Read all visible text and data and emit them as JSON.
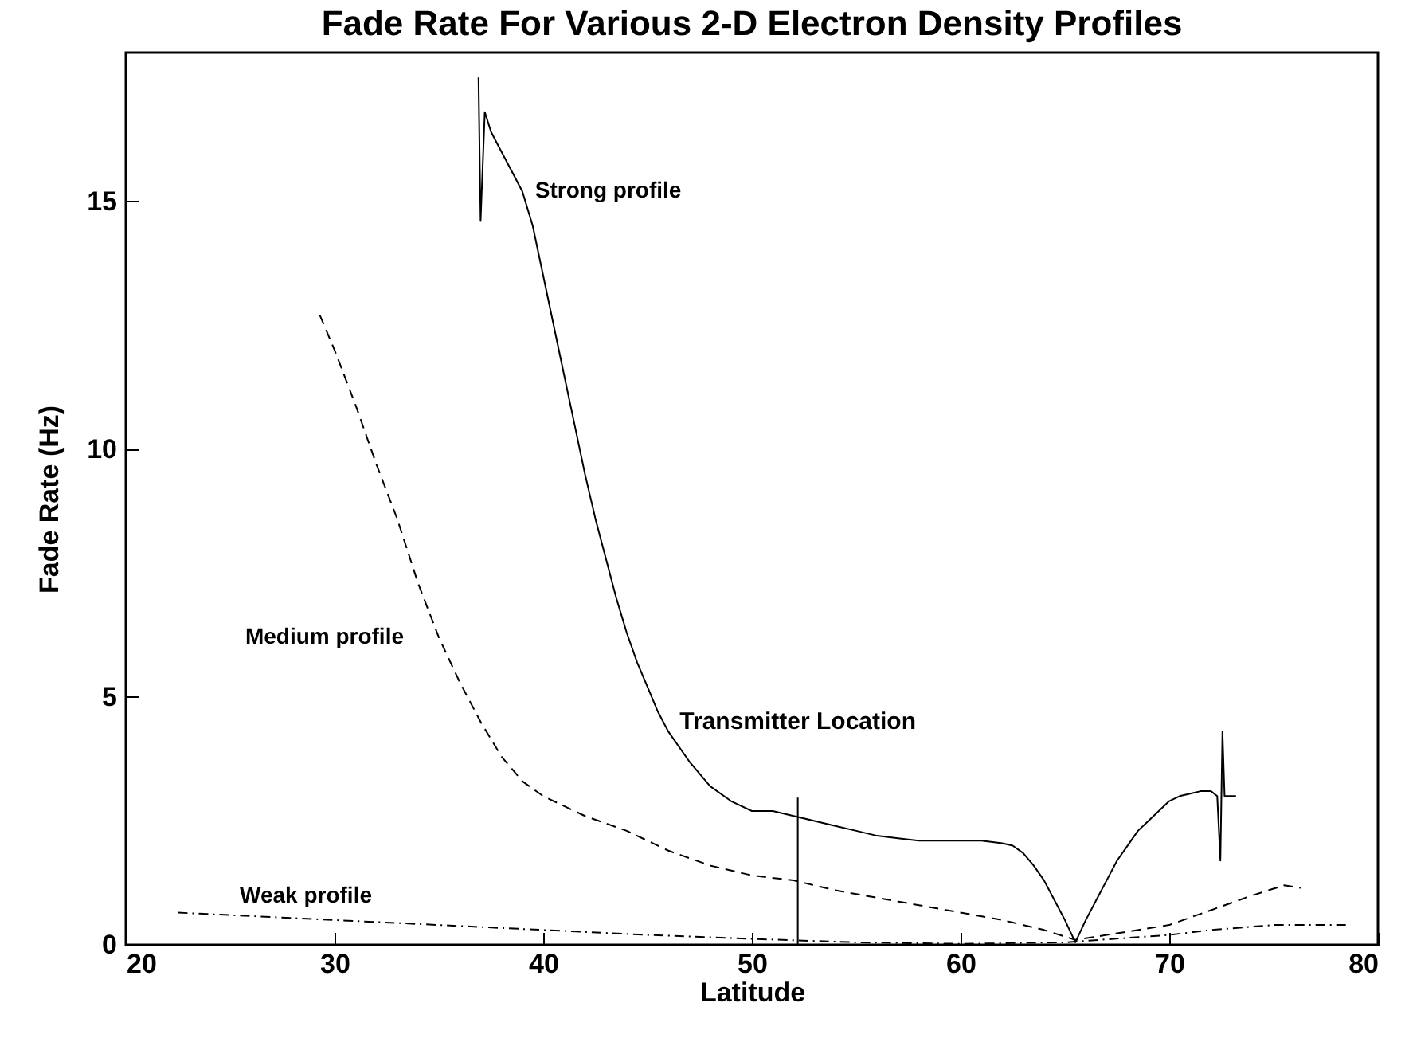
{
  "chart_data": {
    "type": "line",
    "title": "Fade Rate For Various 2-D Electron Density Profiles",
    "xlabel": "Latitude",
    "ylabel": "Fade Rate (Hz)",
    "xlim": [
      20,
      80
    ],
    "xticks": [
      20,
      30,
      40,
      50,
      60,
      70,
      80
    ],
    "ylim": [
      0,
      18
    ],
    "yticks": [
      0,
      5,
      10,
      15
    ],
    "series": [
      {
        "color": "#000000",
        "line_style": "solid",
        "x": [
          36.9,
          37.0,
          37.2,
          37.5,
          38,
          38.5,
          39,
          39.5,
          40,
          40.5,
          41,
          41.5,
          42,
          42.5,
          43,
          43.5,
          44,
          44.5,
          45,
          45.5,
          46,
          47,
          48,
          49,
          50,
          51,
          52,
          53,
          54,
          55,
          56,
          57,
          58,
          59,
          60,
          61,
          62,
          62.5,
          63,
          63.5,
          64,
          64.5,
          65,
          65.5,
          66,
          66.5,
          67,
          67.5,
          68,
          68.5,
          69,
          69.5,
          70,
          70.5,
          71,
          71.5,
          72,
          72.3,
          72.45,
          72.55,
          72.65,
          72.8,
          73.2
        ],
        "values": [
          17.5,
          14.6,
          16.8,
          16.4,
          16.0,
          15.6,
          15.2,
          14.5,
          13.5,
          12.5,
          11.5,
          10.5,
          9.5,
          8.6,
          7.8,
          7.0,
          6.3,
          5.7,
          5.2,
          4.7,
          4.3,
          3.7,
          3.2,
          2.9,
          2.7,
          2.7,
          2.6,
          2.5,
          2.4,
          2.3,
          2.2,
          2.15,
          2.1,
          2.1,
          2.1,
          2.1,
          2.05,
          2.0,
          1.85,
          1.6,
          1.3,
          0.9,
          0.5,
          0.05,
          0.5,
          0.9,
          1.3,
          1.7,
          2.0,
          2.3,
          2.5,
          2.7,
          2.9,
          3.0,
          3.05,
          3.1,
          3.1,
          3.0,
          1.7,
          4.3,
          3.0,
          3.0,
          3.0
        ]
      },
      {
        "color": "#000000",
        "line_style": "dashed",
        "x": [
          29.3,
          30,
          31,
          32,
          33,
          34,
          35,
          36,
          37,
          38,
          39,
          40,
          42,
          44,
          46,
          48,
          50,
          52,
          54,
          56,
          58,
          60,
          62,
          64,
          65.5,
          67,
          70,
          72,
          74,
          75.5,
          76.3
        ],
        "values": [
          12.7,
          12.0,
          10.9,
          9.7,
          8.6,
          7.3,
          6.2,
          5.3,
          4.5,
          3.8,
          3.3,
          3.0,
          2.6,
          2.3,
          1.9,
          1.6,
          1.4,
          1.3,
          1.1,
          0.95,
          0.8,
          0.65,
          0.5,
          0.3,
          0.1,
          0.2,
          0.4,
          0.7,
          1.0,
          1.2,
          1.15
        ]
      },
      {
        "color": "#000000",
        "line_style": "dotted",
        "x": [
          22.5,
          25,
          30,
          35,
          40,
          45,
          50,
          55,
          60,
          65,
          70,
          72,
          75,
          78.5
        ],
        "values": [
          0.65,
          0.6,
          0.5,
          0.4,
          0.3,
          0.2,
          0.12,
          0.05,
          0.02,
          0.05,
          0.2,
          0.3,
          0.4,
          0.4
        ]
      }
    ],
    "ref_lines": [
      {
        "axis": "x",
        "value": 52.2,
        "label": "Transmitter Location"
      }
    ],
    "annotations": [
      {
        "text": "Strong profile",
        "x": 39,
        "y": 15.2
      },
      {
        "text": "Medium profile",
        "x": 35,
        "y": 6.2
      },
      {
        "text": "Weak profile",
        "x": 25,
        "y": 0.6
      }
    ]
  }
}
